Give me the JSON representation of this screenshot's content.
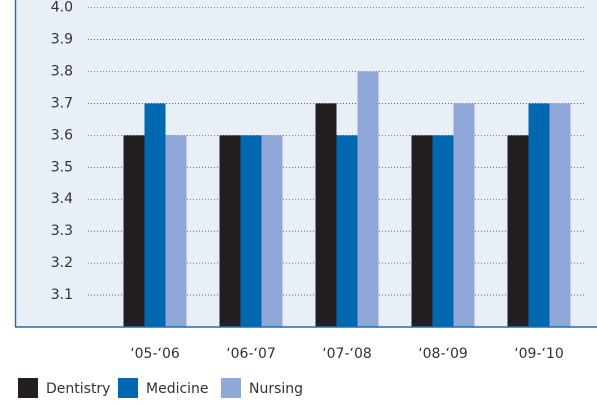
{
  "chart_data": {
    "type": "bar",
    "categories": [
      "‘05-‘06",
      "‘06-‘07",
      "‘07-‘08",
      "‘08-‘09",
      "‘09-‘10"
    ],
    "series": [
      {
        "name": "Dentistry",
        "color": "#231f20",
        "values": [
          3.6,
          3.6,
          3.7,
          3.6,
          3.6
        ]
      },
      {
        "name": "Medicine",
        "color": "#0067b1",
        "values": [
          3.7,
          3.6,
          3.6,
          3.6,
          3.7
        ]
      },
      {
        "name": "Nursing",
        "color": "#8fa8d8",
        "values": [
          3.6,
          3.6,
          3.8,
          3.7,
          3.7
        ]
      }
    ],
    "ylim": [
      3.0,
      4.0
    ],
    "yticks": [
      3.1,
      3.2,
      3.3,
      3.4,
      3.5,
      3.6,
      3.7,
      3.8,
      3.9,
      {
        "value": 4,
        "label": "4.0"
      }
    ],
    "grid": true
  }
}
